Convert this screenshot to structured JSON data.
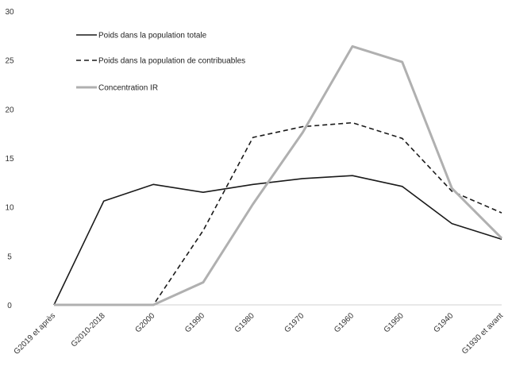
{
  "chart_data": {
    "type": "line",
    "categories": [
      "G2019 et après",
      "G2010-2018",
      "G2000",
      "G1990",
      "G1980",
      "G1970",
      "G1960",
      "G1950",
      "G1940",
      "G1930 et avant"
    ],
    "ylim": [
      0,
      30
    ],
    "yticks": [
      0,
      5,
      10,
      15,
      20,
      25,
      30
    ],
    "grid": false,
    "legend_position": "top-left",
    "series": [
      {
        "name": "Poids dans la population totale",
        "color": "#1a1a1a",
        "dash": "solid",
        "values": [
          0,
          10.6,
          12.3,
          11.5,
          12.3,
          12.9,
          13.2,
          12.1,
          8.3,
          6.7
        ]
      },
      {
        "name": "Poids dans la population de contribuables",
        "color": "#1a1a1a",
        "dash": "dashed",
        "values": [
          0,
          0,
          0,
          7.6,
          17.1,
          18.2,
          18.6,
          17.0,
          11.6,
          9.4
        ]
      },
      {
        "name": "Concentration IR",
        "color": "#b0b0b0",
        "dash": "solid",
        "values": [
          0,
          0,
          0,
          2.3,
          10.3,
          17.6,
          26.4,
          24.8,
          11.9,
          6.8
        ]
      }
    ]
  }
}
